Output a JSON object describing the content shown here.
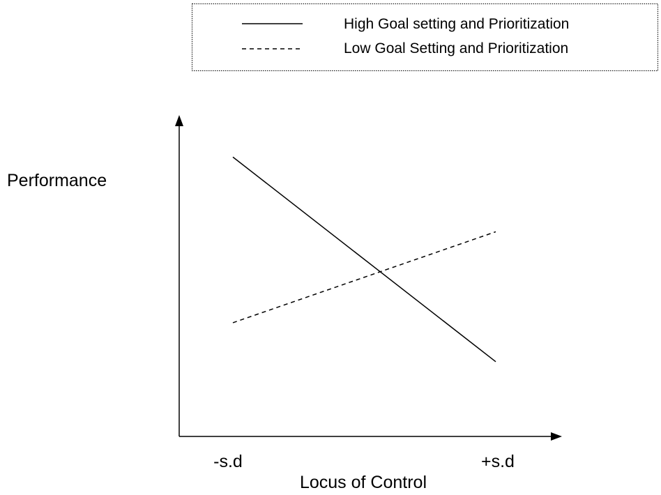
{
  "chart_data": {
    "type": "line",
    "title": "",
    "xlabel": "Locus of Control",
    "ylabel": "Performance",
    "categories": [
      "-s.d",
      "+s.d"
    ],
    "ylim": [
      0,
      10
    ],
    "grid": false,
    "legend_position": "top-right",
    "series": [
      {
        "name": "High Goal setting and Prioritization",
        "values": [
          8.6,
          2.3
        ],
        "style": "solid",
        "color": "#000000"
      },
      {
        "name": "Low Goal Setting and Prioritization",
        "values": [
          3.5,
          6.3
        ],
        "style": "dashed",
        "color": "#000000"
      }
    ]
  }
}
